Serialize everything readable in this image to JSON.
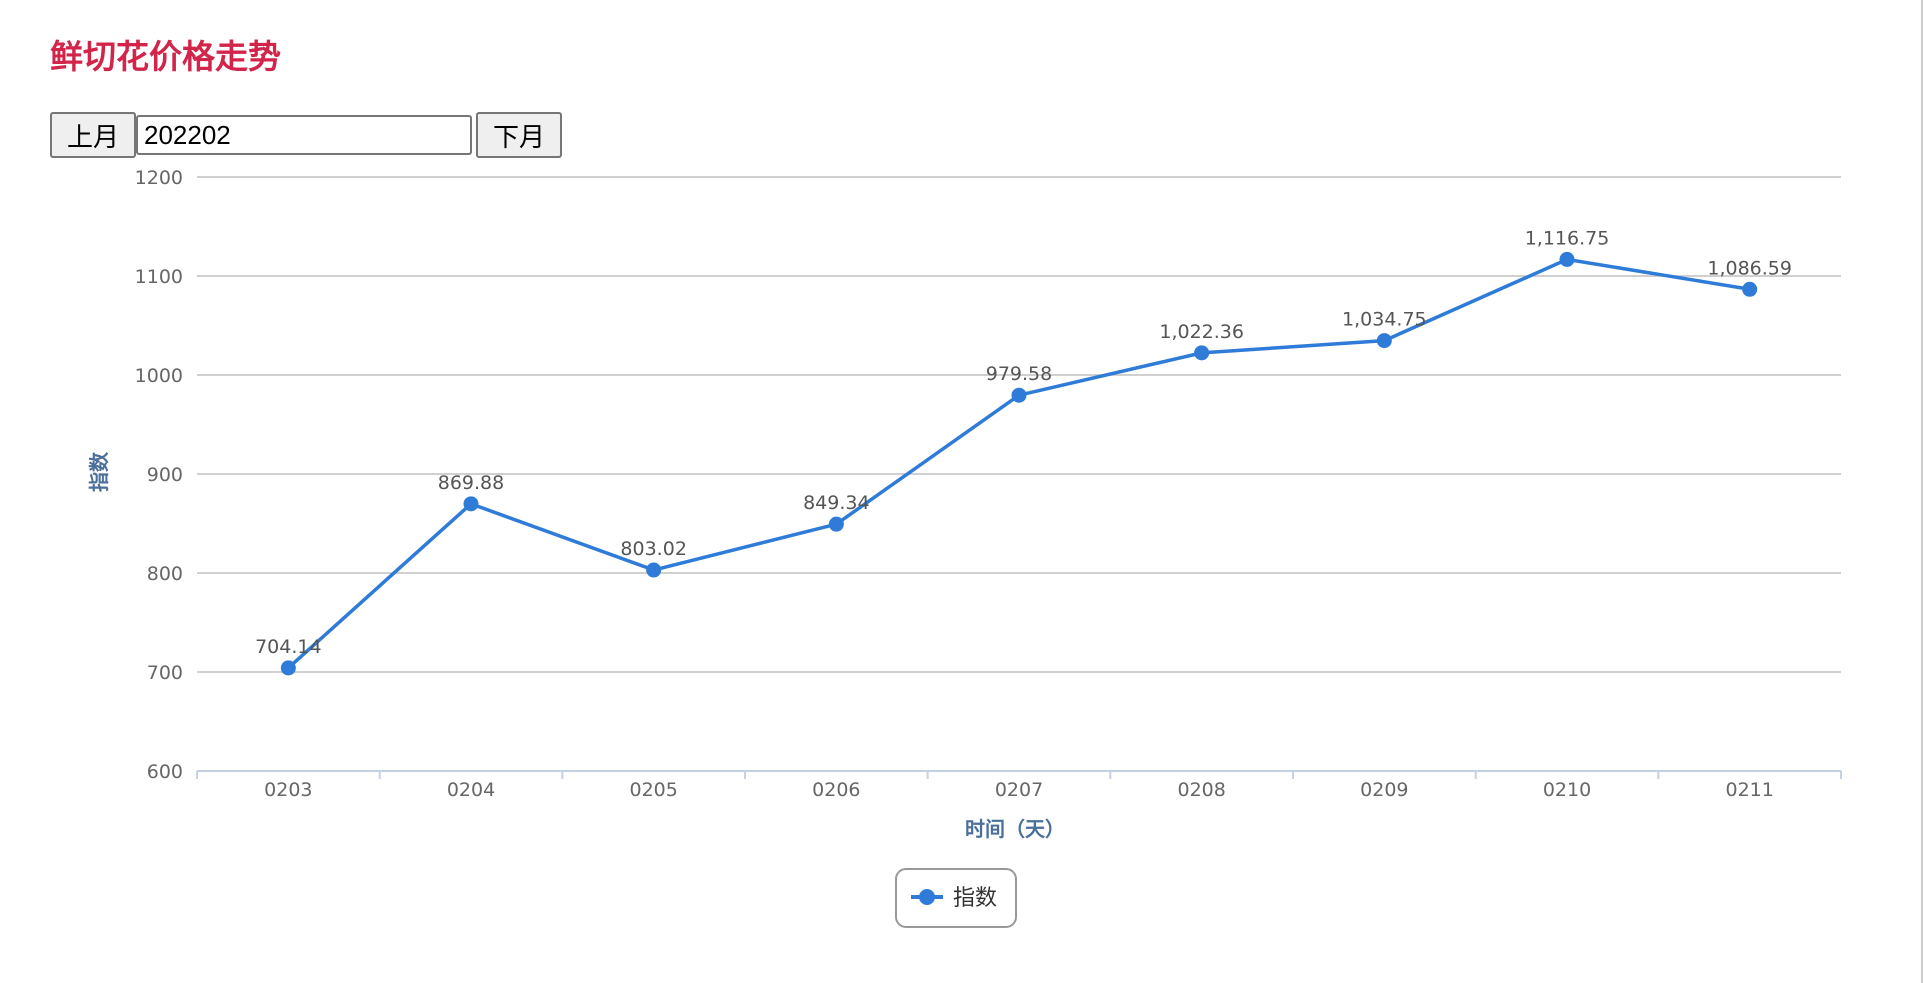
{
  "page": {
    "title": "鲜切花价格走势"
  },
  "controls": {
    "prev_label": "上月",
    "month_value": "202202",
    "next_label": "下月"
  },
  "chart_data": {
    "type": "line",
    "categories": [
      "0203",
      "0204",
      "0205",
      "0206",
      "0207",
      "0208",
      "0209",
      "0210",
      "0211"
    ],
    "series": [
      {
        "name": "指数",
        "values": [
          704.14,
          869.88,
          803.02,
          849.34,
          979.58,
          1022.36,
          1034.75,
          1116.75,
          1086.59
        ],
        "labels": [
          "704.14",
          "869.88",
          "803.02",
          "849.34",
          "979.58",
          "1,022.36",
          "1,034.75",
          "1,116.75",
          "1,086.59"
        ]
      }
    ],
    "xlabel": "时间（天）",
    "ylabel": "指数",
    "ylim": [
      600,
      1200
    ],
    "yticks": [
      "600",
      "700",
      "800",
      "900",
      "1000",
      "1100",
      "1200"
    ],
    "grid": true,
    "legend": "bottom-center",
    "color": "#2e7bd8"
  }
}
